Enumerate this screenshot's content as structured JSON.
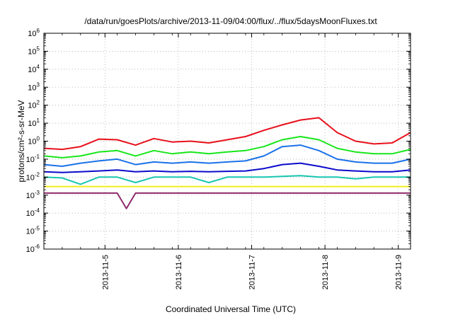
{
  "chart_data": {
    "type": "line",
    "title": "/data/run/goesPlots/archive/2013-11-09/04:00/flux/../flux/5daysMoonFluxes.txt",
    "xlabel": "Coordinated Universal Time (UTC)",
    "ylabel": "protons/cm²-s-sr-MeV",
    "y_scale": "log",
    "ylim": [
      1e-06,
      1000000.0
    ],
    "xlim": [
      "2013-11-04 04:00",
      "2013-11-09 04:00"
    ],
    "y_ticks": [
      {
        "base": "10",
        "exp": "-6"
      },
      {
        "base": "10",
        "exp": "-5"
      },
      {
        "base": "10",
        "exp": "-4"
      },
      {
        "base": "10",
        "exp": "-3"
      },
      {
        "base": "10",
        "exp": "-2"
      },
      {
        "base": "10",
        "exp": "-1"
      },
      {
        "base": "10",
        "exp": "0"
      },
      {
        "base": "10",
        "exp": "1"
      },
      {
        "base": "10",
        "exp": "2"
      },
      {
        "base": "10",
        "exp": "3"
      },
      {
        "base": "10",
        "exp": "4"
      },
      {
        "base": "10",
        "exp": "5"
      },
      {
        "base": "10",
        "exp": "6"
      }
    ],
    "x_ticks": [
      "2013-11-5",
      "2013-11-6",
      "2013-11-7",
      "2013-11-8",
      "2013-11-9"
    ],
    "grid": true,
    "legend": "none",
    "series": [
      {
        "color": "#e8101b",
        "x": [
          "2013-11-04 04:00",
          "2013-11-04 10:00",
          "2013-11-04 16:00",
          "2013-11-04 22:00",
          "2013-11-05 04:00",
          "2013-11-05 10:00",
          "2013-11-05 16:00",
          "2013-11-05 22:00",
          "2013-11-06 04:00",
          "2013-11-06 10:00",
          "2013-11-06 16:00",
          "2013-11-06 22:00",
          "2013-11-07 04:00",
          "2013-11-07 10:00",
          "2013-11-07 16:00",
          "2013-11-07 22:00",
          "2013-11-08 04:00",
          "2013-11-08 10:00",
          "2013-11-08 16:00",
          "2013-11-08 22:00",
          "2013-11-09 04:00"
        ],
        "y": [
          0.4,
          0.35,
          0.5,
          1.3,
          1.2,
          0.6,
          1.4,
          0.9,
          1.0,
          0.8,
          1.2,
          1.8,
          4.0,
          8.0,
          15,
          20,
          3.0,
          1.0,
          0.7,
          0.8,
          3.0
        ]
      },
      {
        "color": "#19e61b",
        "x": [
          "2013-11-04 04:00",
          "2013-11-04 10:00",
          "2013-11-04 16:00",
          "2013-11-04 22:00",
          "2013-11-05 04:00",
          "2013-11-05 10:00",
          "2013-11-05 16:00",
          "2013-11-05 22:00",
          "2013-11-06 04:00",
          "2013-11-06 10:00",
          "2013-11-06 16:00",
          "2013-11-06 22:00",
          "2013-11-07 04:00",
          "2013-11-07 10:00",
          "2013-11-07 16:00",
          "2013-11-07 22:00",
          "2013-11-08 04:00",
          "2013-11-08 10:00",
          "2013-11-08 16:00",
          "2013-11-08 22:00",
          "2013-11-09 04:00"
        ],
        "y": [
          0.15,
          0.12,
          0.15,
          0.25,
          0.3,
          0.15,
          0.3,
          0.2,
          0.25,
          0.2,
          0.25,
          0.3,
          0.5,
          1.2,
          1.8,
          1.2,
          0.4,
          0.25,
          0.2,
          0.2,
          0.35
        ]
      },
      {
        "color": "#1a72e8",
        "x": [
          "2013-11-04 04:00",
          "2013-11-04 10:00",
          "2013-11-04 16:00",
          "2013-11-04 22:00",
          "2013-11-05 04:00",
          "2013-11-05 10:00",
          "2013-11-05 16:00",
          "2013-11-05 22:00",
          "2013-11-06 04:00",
          "2013-11-06 10:00",
          "2013-11-06 16:00",
          "2013-11-06 22:00",
          "2013-11-07 04:00",
          "2013-11-07 10:00",
          "2013-11-07 16:00",
          "2013-11-07 22:00",
          "2013-11-08 04:00",
          "2013-11-08 10:00",
          "2013-11-08 16:00",
          "2013-11-08 22:00",
          "2013-11-09 04:00"
        ],
        "y": [
          0.05,
          0.04,
          0.06,
          0.08,
          0.1,
          0.05,
          0.07,
          0.06,
          0.07,
          0.06,
          0.07,
          0.08,
          0.15,
          0.5,
          0.6,
          0.3,
          0.1,
          0.07,
          0.06,
          0.06,
          0.1
        ]
      },
      {
        "color": "#0b0bcc",
        "x": [
          "2013-11-04 04:00",
          "2013-11-04 10:00",
          "2013-11-04 16:00",
          "2013-11-04 22:00",
          "2013-11-05 04:00",
          "2013-11-05 10:00",
          "2013-11-05 16:00",
          "2013-11-05 22:00",
          "2013-11-06 04:00",
          "2013-11-06 10:00",
          "2013-11-06 16:00",
          "2013-11-06 22:00",
          "2013-11-07 04:00",
          "2013-11-07 10:00",
          "2013-11-07 16:00",
          "2013-11-07 22:00",
          "2013-11-08 04:00",
          "2013-11-08 10:00",
          "2013-11-08 16:00",
          "2013-11-08 22:00",
          "2013-11-09 04:00"
        ],
        "y": [
          0.02,
          0.018,
          0.02,
          0.022,
          0.025,
          0.02,
          0.022,
          0.02,
          0.021,
          0.02,
          0.021,
          0.022,
          0.03,
          0.05,
          0.06,
          0.04,
          0.025,
          0.022,
          0.02,
          0.02,
          0.025
        ]
      },
      {
        "color": "#19c6b0",
        "x": [
          "2013-11-04 04:00",
          "2013-11-04 10:00",
          "2013-11-04 16:00",
          "2013-11-04 22:00",
          "2013-11-05 04:00",
          "2013-11-05 10:00",
          "2013-11-05 16:00",
          "2013-11-05 22:00",
          "2013-11-06 04:00",
          "2013-11-06 10:00",
          "2013-11-06 16:00",
          "2013-11-06 22:00",
          "2013-11-07 04:00",
          "2013-11-07 10:00",
          "2013-11-07 16:00",
          "2013-11-07 22:00",
          "2013-11-08 04:00",
          "2013-11-08 10:00",
          "2013-11-08 16:00",
          "2013-11-08 22:00",
          "2013-11-09 04:00"
        ],
        "y": [
          0.01,
          0.009,
          0.004,
          0.01,
          0.01,
          0.005,
          0.01,
          0.01,
          0.01,
          0.005,
          0.01,
          0.01,
          0.01,
          0.011,
          0.012,
          0.01,
          0.01,
          0.008,
          0.01,
          0.01,
          0.01
        ]
      },
      {
        "color": "#f5ee1a",
        "x": [
          "2013-11-04 04:00",
          "2013-11-04 16:00",
          "2013-11-05 04:00",
          "2013-11-05 16:00",
          "2013-11-06 04:00",
          "2013-11-06 16:00",
          "2013-11-07 04:00",
          "2013-11-07 16:00",
          "2013-11-08 04:00",
          "2013-11-08 16:00",
          "2013-11-09 04:00"
        ],
        "y": [
          0.003,
          0.003,
          0.003,
          0.003,
          0.003,
          0.003,
          0.003,
          0.003,
          0.003,
          0.003,
          0.003
        ]
      },
      {
        "color": "#8e2a6b",
        "x": [
          "2013-11-04 04:00",
          "2013-11-04 16:00",
          "2013-11-05 04:00",
          "2013-11-05 07:00",
          "2013-11-05 10:00",
          "2013-11-05 16:00",
          "2013-11-06 04:00",
          "2013-11-06 16:00",
          "2013-11-07 04:00",
          "2013-11-07 16:00",
          "2013-11-08 04:00",
          "2013-11-08 16:00",
          "2013-11-09 04:00"
        ],
        "y": [
          0.0013,
          0.0013,
          0.0013,
          0.00018,
          0.0013,
          0.0013,
          0.0013,
          0.0013,
          0.0013,
          0.0013,
          0.0013,
          0.0013,
          0.0013
        ]
      }
    ]
  }
}
